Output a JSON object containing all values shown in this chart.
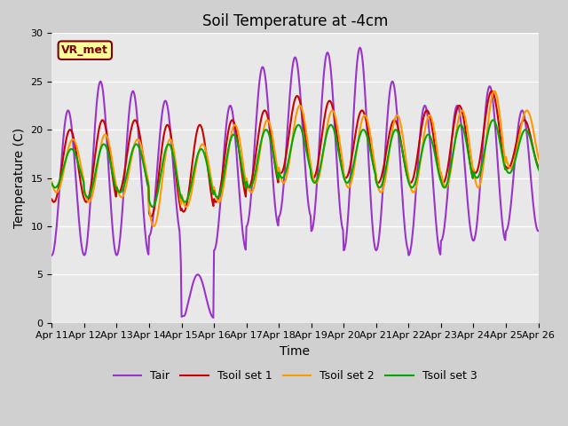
{
  "title": "Soil Temperature at -4cm",
  "xlabel": "Time",
  "ylabel": "Temperature (C)",
  "ylim": [
    0,
    30
  ],
  "x_tick_labels": [
    "Apr 11",
    "Apr 12",
    "Apr 13",
    "Apr 14",
    "Apr 15",
    "Apr 16",
    "Apr 17",
    "Apr 18",
    "Apr 19",
    "Apr 20",
    "Apr 21",
    "Apr 22",
    "Apr 23",
    "Apr 24",
    "Apr 25",
    "Apr 26"
  ],
  "tair_color": "#9933cc",
  "tsoil1_color": "#cc0000",
  "tsoil2_color": "#ff9900",
  "tsoil3_color": "#00aa00",
  "fig_bg_color": "#d0d0d0",
  "plot_bg_color": "#e8e8e8",
  "annotation_text": "VR_met",
  "annotation_box_color": "#ffff99",
  "annotation_border_color": "#800000",
  "legend_labels": [
    "Tair",
    "Tsoil set 1",
    "Tsoil set 2",
    "Tsoil set 3"
  ],
  "title_fontsize": 12,
  "axis_fontsize": 10,
  "tick_fontsize": 8,
  "line_width": 1.5
}
